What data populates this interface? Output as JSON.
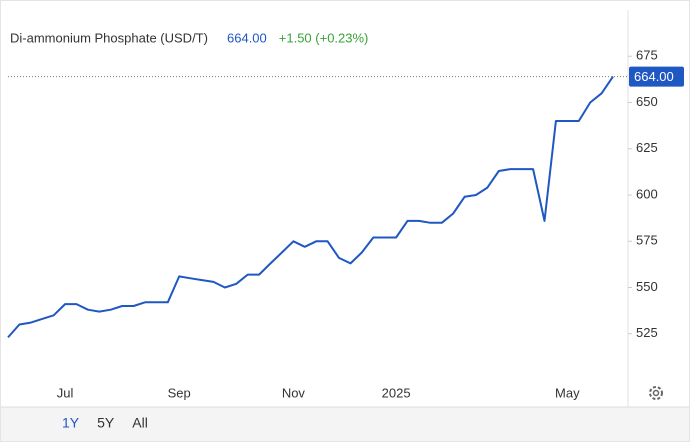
{
  "chart_data": {
    "type": "line",
    "title": "Di-ammonium Phosphate (USD/T)",
    "last_price": "664.00",
    "change": "+1.50 (+0.23%)",
    "categories": [
      null,
      null,
      null,
      null,
      null,
      "Jul",
      null,
      null,
      null,
      null,
      null,
      null,
      null,
      null,
      null,
      "Sep",
      null,
      null,
      null,
      null,
      null,
      null,
      null,
      null,
      null,
      "Nov",
      null,
      null,
      null,
      null,
      null,
      null,
      null,
      null,
      "2025",
      null,
      null,
      null,
      null,
      null,
      null,
      null,
      null,
      null,
      null,
      null,
      null,
      null,
      null,
      "May",
      null,
      null,
      null,
      null
    ],
    "series": [
      {
        "name": "Di-ammonium Phosphate",
        "color": "#1f57c3",
        "values": [
          523,
          530,
          531,
          533,
          535,
          541,
          541,
          538,
          537,
          538,
          540,
          540,
          542,
          542,
          542,
          556,
          555,
          554,
          553,
          550,
          552,
          557,
          557,
          563,
          569,
          575,
          572,
          575,
          575,
          566,
          563,
          569,
          577,
          577,
          577,
          586,
          586,
          585,
          585,
          590,
          599,
          600,
          604,
          613,
          614,
          614,
          614,
          586,
          640,
          640,
          640,
          650,
          655,
          664
        ]
      }
    ],
    "ylim": [
      500,
      700
    ],
    "yticks": [
      525,
      550,
      575,
      600,
      625,
      650,
      675
    ],
    "grid": false,
    "ranges": [
      {
        "label": "1Y",
        "active": true
      },
      {
        "label": "5Y",
        "active": false
      },
      {
        "label": "All",
        "active": false
      }
    ]
  }
}
